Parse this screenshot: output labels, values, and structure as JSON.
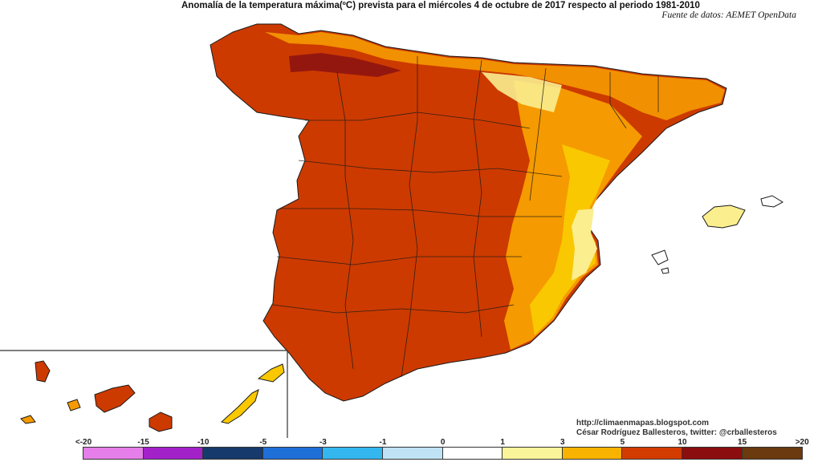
{
  "title": "Anomalía de la temperatura máxima(ºC) prevista para el miércoles 4 de octubre de 2017 respecto al periodo 1981-2010",
  "source": "Fuente de datos: AEMET OpenData",
  "credits": {
    "url": "http://climaenmapas.blogspot.com",
    "author": "César Rodríguez Ballesteros, twitter: @crballesteros"
  },
  "legend": {
    "ticks": [
      "<-20",
      "-15",
      "-10",
      "-5",
      "-3",
      "-1",
      "0",
      "1",
      "3",
      "5",
      "10",
      "15",
      ">20"
    ],
    "colors": [
      "#e57ee8",
      "#a321c9",
      "#153a6b",
      "#1f6fd8",
      "#34b6ef",
      "#bfe3f5",
      "#ffffff",
      "#faf59a",
      "#f7b300",
      "#d23c00",
      "#8b0d0d",
      "#6b3a0e"
    ]
  },
  "map_colors": {
    "interior": "#cc3a00",
    "north_coast": "#f59a00",
    "east_coast": "#f9c800",
    "east_coast_light": "#fbee8e",
    "mountains": "#8a1212",
    "borders": "#1a1a1a"
  }
}
